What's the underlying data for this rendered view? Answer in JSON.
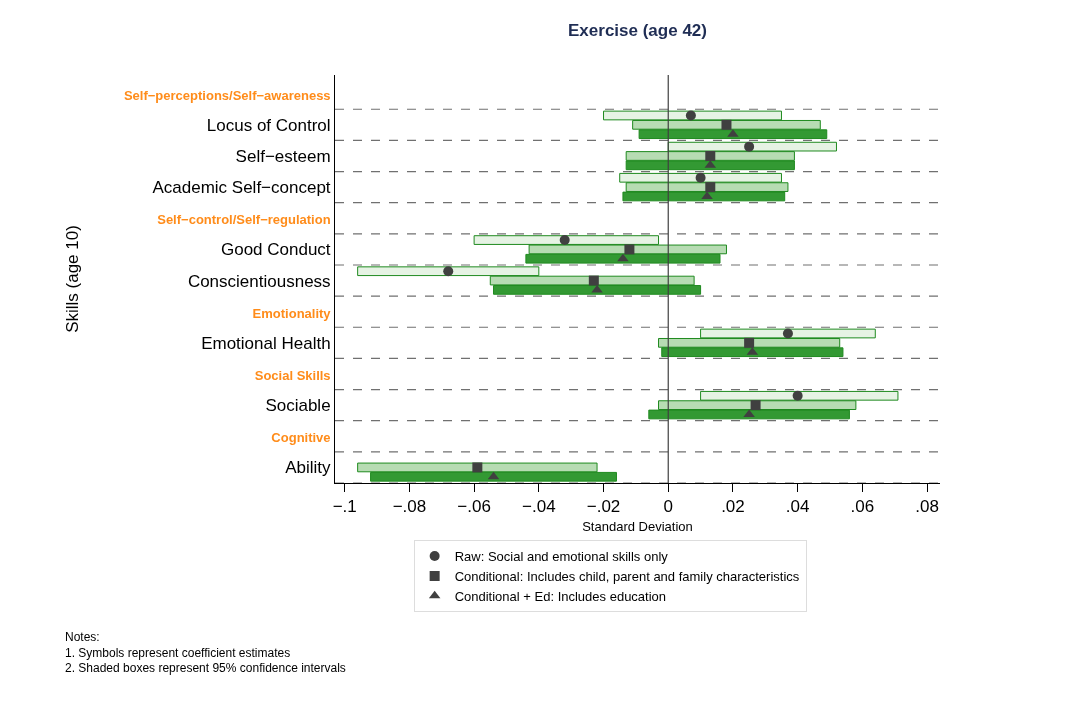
{
  "chart_data": {
    "type": "scatter",
    "orientation": "horizontal",
    "title": "Exercise (age 42)",
    "xlabel": "Standard Deviation",
    "ylabel": "Skills (age 10)",
    "categories": [
      "Self−perceptions/Self−awareness",
      "Locus of Control",
      "Self−esteem",
      "Academic Self−concept",
      "Self−control/Self−regulation",
      "Good Conduct",
      "Conscientiousness",
      "Emotionality",
      "Emotional Health",
      "Social Skills",
      "Sociable",
      "Cognitive",
      "Ability"
    ],
    "series": [
      {
        "type": "bar",
        "color": "#e6f3e4",
        "base": [
          null,
          -0.02,
          0.0,
          -0.015,
          null,
          -0.06,
          -0.096,
          null,
          0.01,
          null,
          0.01,
          null,
          null
        ],
        "values": [
          null,
          0.055,
          0.052,
          0.05,
          null,
          0.057,
          0.056,
          null,
          0.054,
          null,
          0.061,
          null,
          null
        ]
      },
      {
        "type": "bar",
        "color": "#b7dcb3",
        "base": [
          null,
          -0.011,
          -0.013,
          -0.013,
          null,
          -0.043,
          -0.055,
          null,
          -0.003,
          null,
          -0.003,
          null,
          -0.096
        ],
        "values": [
          null,
          0.058,
          0.052,
          0.05,
          null,
          0.061,
          0.063,
          null,
          0.056,
          null,
          0.061,
          null,
          0.074
        ]
      },
      {
        "type": "bar",
        "color": "#339933",
        "base": [
          null,
          -0.009,
          -0.013,
          -0.014,
          null,
          -0.044,
          -0.054,
          null,
          -0.002,
          null,
          -0.006,
          null,
          -0.092
        ],
        "values": [
          null,
          0.058,
          0.052,
          0.05,
          null,
          0.06,
          0.064,
          null,
          0.056,
          null,
          0.062,
          null,
          0.076
        ]
      },
      {
        "name": "Raw: Social and emotional skills only",
        "color": "#404040",
        "marker": "circle",
        "values": [
          null,
          0.007,
          0.025,
          0.01,
          null,
          -0.032,
          -0.068,
          null,
          0.037,
          null,
          0.04,
          null,
          null
        ]
      },
      {
        "name": "Conditional: Includes child, parent and family characteristics",
        "color": "#404040",
        "marker": "square",
        "values": [
          null,
          0.018,
          0.013,
          0.013,
          null,
          -0.012,
          -0.023,
          null,
          0.025,
          null,
          0.027,
          null,
          -0.059
        ]
      },
      {
        "name": "Conditional + Ed: Includes education",
        "color": "#404040",
        "marker": "triangle",
        "values": [
          null,
          0.02,
          0.013,
          0.012,
          null,
          -0.014,
          -0.022,
          null,
          0.026,
          null,
          0.025,
          null,
          -0.054
        ]
      }
    ],
    "xlim": [
      -0.103,
      0.084
    ],
    "xticks": [
      {
        "value": -0.1,
        "label": "−.1"
      },
      {
        "value": -0.08,
        "label": "−.08"
      },
      {
        "value": -0.06,
        "label": "−.06"
      },
      {
        "value": -0.04,
        "label": "−.04"
      },
      {
        "value": -0.02,
        "label": "−.02"
      },
      0,
      {
        "value": 0.02,
        "label": ".02"
      },
      {
        "value": 0.04,
        "label": ".04"
      },
      {
        "value": 0.06,
        "label": ".06"
      },
      {
        "value": 0.08,
        "label": ".08"
      }
    ],
    "ref_lines": [
      {
        "axis": "x",
        "value": 0,
        "color": "#404040"
      }
    ],
    "grid": "y",
    "legend": "bottom",
    "annotations": [
      "Notes:\n1. Symbols represent coefficient estimates\n2. Shaded boxes represent 95% confidence intervals"
    ]
  }
}
